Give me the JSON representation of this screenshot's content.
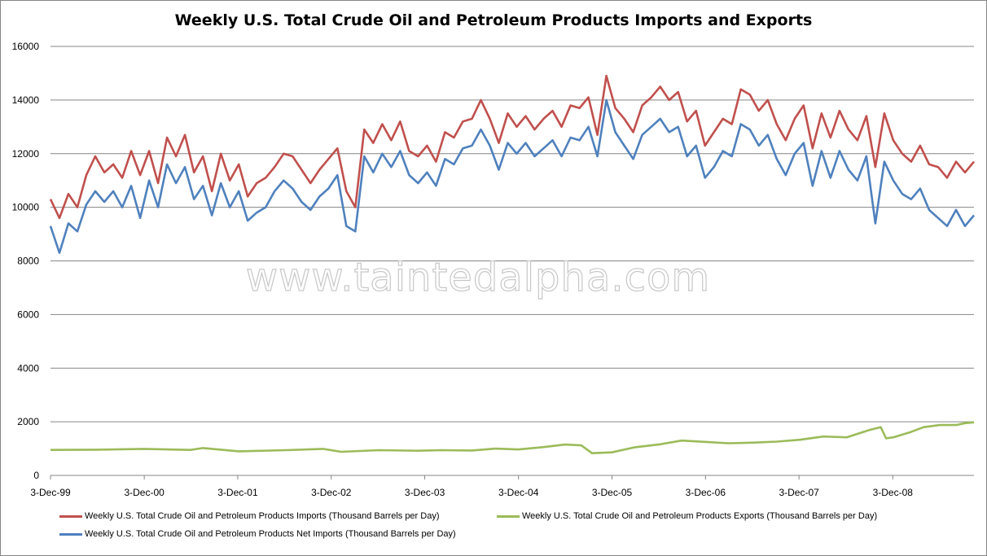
{
  "chart_data": {
    "type": "line",
    "title": "Weekly U.S. Total Crude Oil and Petroleum Products Imports and Exports",
    "watermark": "www.taintedalpha.com",
    "xlabel": "",
    "ylabel": "",
    "ylim": [
      0,
      16000
    ],
    "yticks": [
      "0",
      "2000",
      "4000",
      "6000",
      "8000",
      "10000",
      "12000",
      "14000",
      "16000"
    ],
    "xticks": [
      "3-Dec-99",
      "3-Dec-00",
      "3-Dec-01",
      "3-Dec-02",
      "3-Dec-03",
      "3-Dec-04",
      "3-Dec-05",
      "3-Dec-06",
      "3-Dec-07",
      "3-Dec-08"
    ],
    "xlim": [
      "1999-12-03",
      "2009-10-16"
    ],
    "grid": true,
    "legend_position": "bottom",
    "series": [
      {
        "name": "Weekly U.S. Total Crude Oil and Petroleum Products Imports  (Thousand  Barrels per Day)",
        "color": "#c0504d",
        "points": [
          [
            "1999-12-03",
            10300
          ],
          [
            "2000-01-07",
            9600
          ],
          [
            "2000-02-11",
            10500
          ],
          [
            "2000-03-17",
            10000
          ],
          [
            "2000-04-21",
            11200
          ],
          [
            "2000-05-26",
            11900
          ],
          [
            "2000-06-30",
            11300
          ],
          [
            "2000-08-04",
            11600
          ],
          [
            "2000-09-08",
            11100
          ],
          [
            "2000-10-13",
            12100
          ],
          [
            "2000-11-17",
            11200
          ],
          [
            "2000-12-22",
            12100
          ],
          [
            "2001-01-26",
            10900
          ],
          [
            "2001-03-02",
            12600
          ],
          [
            "2001-04-06",
            11900
          ],
          [
            "2001-05-11",
            12700
          ],
          [
            "2001-06-15",
            11300
          ],
          [
            "2001-07-20",
            11900
          ],
          [
            "2001-08-24",
            10600
          ],
          [
            "2001-09-28",
            12000
          ],
          [
            "2001-11-02",
            11000
          ],
          [
            "2001-12-07",
            11600
          ],
          [
            "2002-01-11",
            10400
          ],
          [
            "2002-02-15",
            10900
          ],
          [
            "2002-03-22",
            11100
          ],
          [
            "2002-04-26",
            11500
          ],
          [
            "2002-05-31",
            12000
          ],
          [
            "2002-07-05",
            11900
          ],
          [
            "2002-08-09",
            11400
          ],
          [
            "2002-09-13",
            10900
          ],
          [
            "2002-10-18",
            11400
          ],
          [
            "2002-11-22",
            11800
          ],
          [
            "2002-12-27",
            12200
          ],
          [
            "2003-01-31",
            10600
          ],
          [
            "2003-03-07",
            10000
          ],
          [
            "2003-04-11",
            12900
          ],
          [
            "2003-05-16",
            12400
          ],
          [
            "2003-06-20",
            13100
          ],
          [
            "2003-07-25",
            12500
          ],
          [
            "2003-08-29",
            13200
          ],
          [
            "2003-10-03",
            12100
          ],
          [
            "2003-11-07",
            11900
          ],
          [
            "2003-12-12",
            12300
          ],
          [
            "2004-01-16",
            11700
          ],
          [
            "2004-02-20",
            12800
          ],
          [
            "2004-03-26",
            12600
          ],
          [
            "2004-04-30",
            13200
          ],
          [
            "2004-06-04",
            13300
          ],
          [
            "2004-07-09",
            14000
          ],
          [
            "2004-08-13",
            13300
          ],
          [
            "2004-09-17",
            12400
          ],
          [
            "2004-10-22",
            13500
          ],
          [
            "2004-11-26",
            13000
          ],
          [
            "2004-12-31",
            13400
          ],
          [
            "2005-02-04",
            12900
          ],
          [
            "2005-03-11",
            13300
          ],
          [
            "2005-04-15",
            13600
          ],
          [
            "2005-05-20",
            13000
          ],
          [
            "2005-06-24",
            13800
          ],
          [
            "2005-07-29",
            13700
          ],
          [
            "2005-09-02",
            14100
          ],
          [
            "2005-10-07",
            12700
          ],
          [
            "2005-11-11",
            14900
          ],
          [
            "2005-12-16",
            13700
          ],
          [
            "2006-01-20",
            13300
          ],
          [
            "2006-02-24",
            12800
          ],
          [
            "2006-03-31",
            13800
          ],
          [
            "2006-05-05",
            14100
          ],
          [
            "2006-06-09",
            14500
          ],
          [
            "2006-07-14",
            14000
          ],
          [
            "2006-08-18",
            14300
          ],
          [
            "2006-09-22",
            13200
          ],
          [
            "2006-10-27",
            13600
          ],
          [
            "2006-12-01",
            12300
          ],
          [
            "2007-01-05",
            12800
          ],
          [
            "2007-02-09",
            13300
          ],
          [
            "2007-03-16",
            13100
          ],
          [
            "2007-04-20",
            14400
          ],
          [
            "2007-05-25",
            14200
          ],
          [
            "2007-06-29",
            13600
          ],
          [
            "2007-08-03",
            14000
          ],
          [
            "2007-09-07",
            13100
          ],
          [
            "2007-10-12",
            12500
          ],
          [
            "2007-11-16",
            13300
          ],
          [
            "2007-12-21",
            13800
          ],
          [
            "2008-01-25",
            12200
          ],
          [
            "2008-02-29",
            13500
          ],
          [
            "2008-04-04",
            12600
          ],
          [
            "2008-05-09",
            13600
          ],
          [
            "2008-06-13",
            12900
          ],
          [
            "2008-07-18",
            12500
          ],
          [
            "2008-08-22",
            13400
          ],
          [
            "2008-09-26",
            11500
          ],
          [
            "2008-10-31",
            13500
          ],
          [
            "2008-12-05",
            12500
          ],
          [
            "2009-01-09",
            12000
          ],
          [
            "2009-02-13",
            11700
          ],
          [
            "2009-03-20",
            12300
          ],
          [
            "2009-04-24",
            11600
          ],
          [
            "2009-05-29",
            11500
          ],
          [
            "2009-07-03",
            11100
          ],
          [
            "2009-08-07",
            11700
          ],
          [
            "2009-09-11",
            11300
          ],
          [
            "2009-10-16",
            11700
          ]
        ]
      },
      {
        "name": "Weekly U.S. Total Crude Oil and Petroleum Products Exports  (Thousand  Barrels per Day)",
        "color": "#9bbb59",
        "points": [
          [
            "1999-12-03",
            950
          ],
          [
            "2000-06-02",
            960
          ],
          [
            "2000-12-01",
            990
          ],
          [
            "2001-06-01",
            950
          ],
          [
            "2001-07-20",
            1020
          ],
          [
            "2001-12-07",
            900
          ],
          [
            "2002-06-07",
            940
          ],
          [
            "2002-11-01",
            990
          ],
          [
            "2003-01-10",
            880
          ],
          [
            "2003-06-06",
            940
          ],
          [
            "2003-11-07",
            920
          ],
          [
            "2004-02-06",
            940
          ],
          [
            "2004-06-04",
            930
          ],
          [
            "2004-09-03",
            1000
          ],
          [
            "2004-12-03",
            970
          ],
          [
            "2005-03-04",
            1050
          ],
          [
            "2005-06-03",
            1150
          ],
          [
            "2005-08-05",
            1120
          ],
          [
            "2005-09-16",
            830
          ],
          [
            "2005-12-02",
            860
          ],
          [
            "2006-03-03",
            1050
          ],
          [
            "2006-06-02",
            1150
          ],
          [
            "2006-09-01",
            1300
          ],
          [
            "2006-12-01",
            1250
          ],
          [
            "2007-03-02",
            1200
          ],
          [
            "2007-06-01",
            1220
          ],
          [
            "2007-09-07",
            1260
          ],
          [
            "2007-12-07",
            1330
          ],
          [
            "2008-03-07",
            1450
          ],
          [
            "2008-06-06",
            1420
          ],
          [
            "2008-09-05",
            1700
          ],
          [
            "2008-10-17",
            1800
          ],
          [
            "2008-11-07",
            1380
          ],
          [
            "2008-12-05",
            1420
          ],
          [
            "2009-02-06",
            1600
          ],
          [
            "2009-04-03",
            1800
          ],
          [
            "2009-06-05",
            1880
          ],
          [
            "2009-08-07",
            1880
          ],
          [
            "2009-09-11",
            1950
          ],
          [
            "2009-10-16",
            1980
          ]
        ]
      },
      {
        "name": "Weekly U.S. Total Crude Oil and Petroleum Products Net Imports  (Thousand  Barrels per Day)",
        "color": "#4f81bd",
        "points": [
          [
            "1999-12-03",
            9300
          ],
          [
            "2000-01-07",
            8300
          ],
          [
            "2000-02-11",
            9400
          ],
          [
            "2000-03-17",
            9100
          ],
          [
            "2000-04-21",
            10100
          ],
          [
            "2000-05-26",
            10600
          ],
          [
            "2000-06-30",
            10200
          ],
          [
            "2000-08-04",
            10600
          ],
          [
            "2000-09-08",
            10000
          ],
          [
            "2000-10-13",
            10800
          ],
          [
            "2000-11-17",
            9600
          ],
          [
            "2000-12-22",
            11000
          ],
          [
            "2001-01-26",
            10000
          ],
          [
            "2001-03-02",
            11600
          ],
          [
            "2001-04-06",
            10900
          ],
          [
            "2001-05-11",
            11500
          ],
          [
            "2001-06-15",
            10300
          ],
          [
            "2001-07-20",
            10800
          ],
          [
            "2001-08-24",
            9700
          ],
          [
            "2001-09-28",
            10900
          ],
          [
            "2001-11-02",
            10000
          ],
          [
            "2001-12-07",
            10600
          ],
          [
            "2002-01-11",
            9500
          ],
          [
            "2002-02-15",
            9800
          ],
          [
            "2002-03-22",
            10000
          ],
          [
            "2002-04-26",
            10600
          ],
          [
            "2002-05-31",
            11000
          ],
          [
            "2002-07-05",
            10700
          ],
          [
            "2002-08-09",
            10200
          ],
          [
            "2002-09-13",
            9900
          ],
          [
            "2002-10-18",
            10400
          ],
          [
            "2002-11-22",
            10700
          ],
          [
            "2002-12-27",
            11200
          ],
          [
            "2003-01-31",
            9300
          ],
          [
            "2003-03-07",
            9100
          ],
          [
            "2003-04-11",
            11900
          ],
          [
            "2003-05-16",
            11300
          ],
          [
            "2003-06-20",
            12000
          ],
          [
            "2003-07-25",
            11500
          ],
          [
            "2003-08-29",
            12100
          ],
          [
            "2003-10-03",
            11200
          ],
          [
            "2003-11-07",
            10900
          ],
          [
            "2003-12-12",
            11300
          ],
          [
            "2004-01-16",
            10800
          ],
          [
            "2004-02-20",
            11800
          ],
          [
            "2004-03-26",
            11600
          ],
          [
            "2004-04-30",
            12200
          ],
          [
            "2004-06-04",
            12300
          ],
          [
            "2004-07-09",
            12900
          ],
          [
            "2004-08-13",
            12300
          ],
          [
            "2004-09-17",
            11400
          ],
          [
            "2004-10-22",
            12400
          ],
          [
            "2004-11-26",
            12000
          ],
          [
            "2004-12-31",
            12400
          ],
          [
            "2005-02-04",
            11900
          ],
          [
            "2005-03-11",
            12200
          ],
          [
            "2005-04-15",
            12500
          ],
          [
            "2005-05-20",
            11900
          ],
          [
            "2005-06-24",
            12600
          ],
          [
            "2005-07-29",
            12500
          ],
          [
            "2005-09-02",
            13000
          ],
          [
            "2005-10-07",
            11900
          ],
          [
            "2005-11-11",
            14000
          ],
          [
            "2005-12-16",
            12800
          ],
          [
            "2006-01-20",
            12300
          ],
          [
            "2006-02-24",
            11800
          ],
          [
            "2006-03-31",
            12700
          ],
          [
            "2006-05-05",
            13000
          ],
          [
            "2006-06-09",
            13300
          ],
          [
            "2006-07-14",
            12800
          ],
          [
            "2006-08-18",
            13000
          ],
          [
            "2006-09-22",
            11900
          ],
          [
            "2006-10-27",
            12300
          ],
          [
            "2006-12-01",
            11100
          ],
          [
            "2007-01-05",
            11500
          ],
          [
            "2007-02-09",
            12100
          ],
          [
            "2007-03-16",
            11900
          ],
          [
            "2007-04-20",
            13100
          ],
          [
            "2007-05-25",
            12900
          ],
          [
            "2007-06-29",
            12300
          ],
          [
            "2007-08-03",
            12700
          ],
          [
            "2007-09-07",
            11800
          ],
          [
            "2007-10-12",
            11200
          ],
          [
            "2007-11-16",
            12000
          ],
          [
            "2007-12-21",
            12400
          ],
          [
            "2008-01-25",
            10800
          ],
          [
            "2008-02-29",
            12100
          ],
          [
            "2008-04-04",
            11100
          ],
          [
            "2008-05-09",
            12100
          ],
          [
            "2008-06-13",
            11400
          ],
          [
            "2008-07-18",
            11000
          ],
          [
            "2008-08-22",
            11900
          ],
          [
            "2008-09-26",
            9400
          ],
          [
            "2008-10-31",
            11700
          ],
          [
            "2008-12-05",
            11000
          ],
          [
            "2009-01-09",
            10500
          ],
          [
            "2009-02-13",
            10300
          ],
          [
            "2009-03-20",
            10700
          ],
          [
            "2009-04-24",
            9900
          ],
          [
            "2009-05-29",
            9600
          ],
          [
            "2009-07-03",
            9300
          ],
          [
            "2009-08-07",
            9900
          ],
          [
            "2009-09-11",
            9300
          ],
          [
            "2009-10-16",
            9700
          ]
        ]
      }
    ]
  }
}
